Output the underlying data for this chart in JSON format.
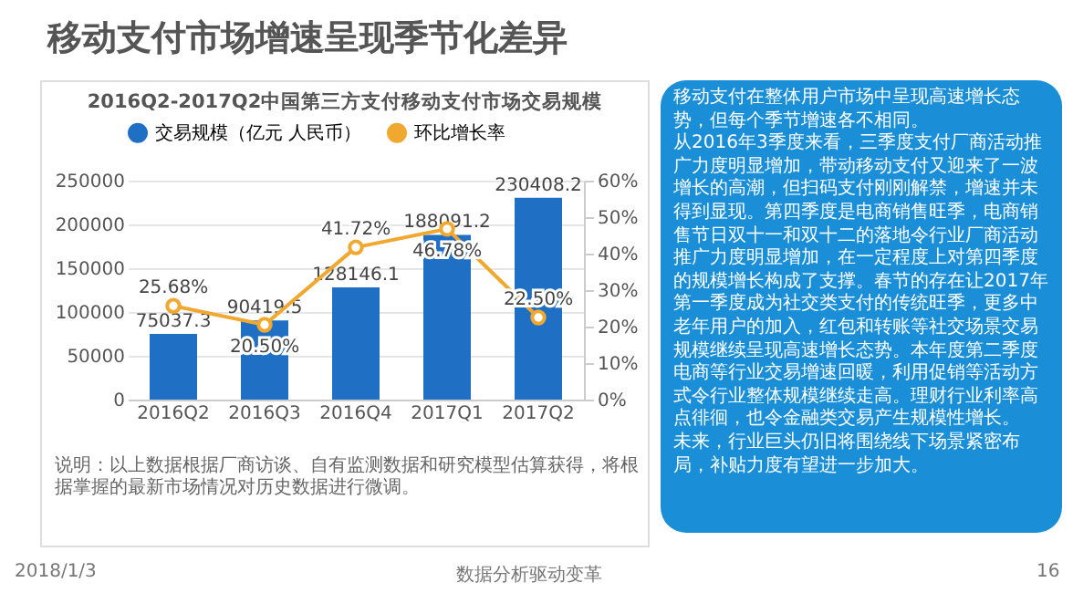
{
  "chart_data": {
    "type": "bar",
    "title": "2016Q2-2017Q2中国第三方支付移动支付市场交易规模",
    "categories": [
      "2016Q2",
      "2016Q3",
      "2016Q4",
      "2017Q1",
      "2017Q2"
    ],
    "series": [
      {
        "name": "交易规模（亿元 人民币）",
        "color": "#1f6fc5",
        "values": [
          75037.3,
          90419.5,
          128146.1,
          188091.2,
          230408.2
        ]
      },
      {
        "name": "环比增长率",
        "type": "line",
        "axis": "y2",
        "color": "#f0a830",
        "marker": "circle",
        "values": [
          25.68,
          20.5,
          41.72,
          46.78,
          22.5
        ],
        "value_labels": [
          "25.68%",
          "20.50%",
          "41.72%",
          "46.78%",
          "22.50%"
        ]
      }
    ],
    "data_labels": true,
    "ylim": [
      0,
      250000
    ],
    "yticks": [
      0,
      50000,
      100000,
      150000,
      200000,
      250000
    ],
    "y2lim": [
      0,
      60
    ],
    "y2ticks": [
      {
        "value": 0,
        "label": "0%"
      },
      {
        "value": 10,
        "label": "10%"
      },
      {
        "value": 20,
        "label": "20%"
      },
      {
        "value": 30,
        "label": "30%"
      },
      {
        "value": 40,
        "label": "40%"
      },
      {
        "value": 50,
        "label": "50%"
      },
      {
        "value": 60,
        "label": "60%"
      }
    ],
    "grid": "y",
    "legend": "top",
    "annotations": [
      "移动支付市场增速呈现季节化差异",
      "说明：以上数据根据厂商访谈、自有监测数据和研究模型估算获得，将根据掌握的最新市场情况对历史数据进行微调。",
      "移动支付在整体用户市场中呈现高速增长态势，但每个季节增速各不相同。",
      "从2016年3季度来看，三季度支付厂商活动推广力度明显增加，带动移动支付又迎来了一波增长的高潮，但扫码支付刚刚解禁，增速并未得到显现。第四季度是电商销售旺季，电商销售节日双十一和双十二的落地令行业厂商活动推广力度明显增加，在一定程度上对第四季度的规模增长构成了支撑。春节的存在让2017年第一季度成为社交类支付的传统旺季，更多中老年用户的加入，红包和转账等社交场景交易规模继续呈现高速增长态势。本年度第二季度电商等行业交易增速回暖，利用促销等活动方式令行业整体规模继续走高。理财行业利率高点徘徊，也令金融类交易产生规模性增长。",
      "未来，行业巨头仍旧将围绕线下场景紧密布局，补贴力度有望进一步加大。",
      "2018/1/3",
      "数据分析驱动变革",
      "16"
    ]
  }
}
